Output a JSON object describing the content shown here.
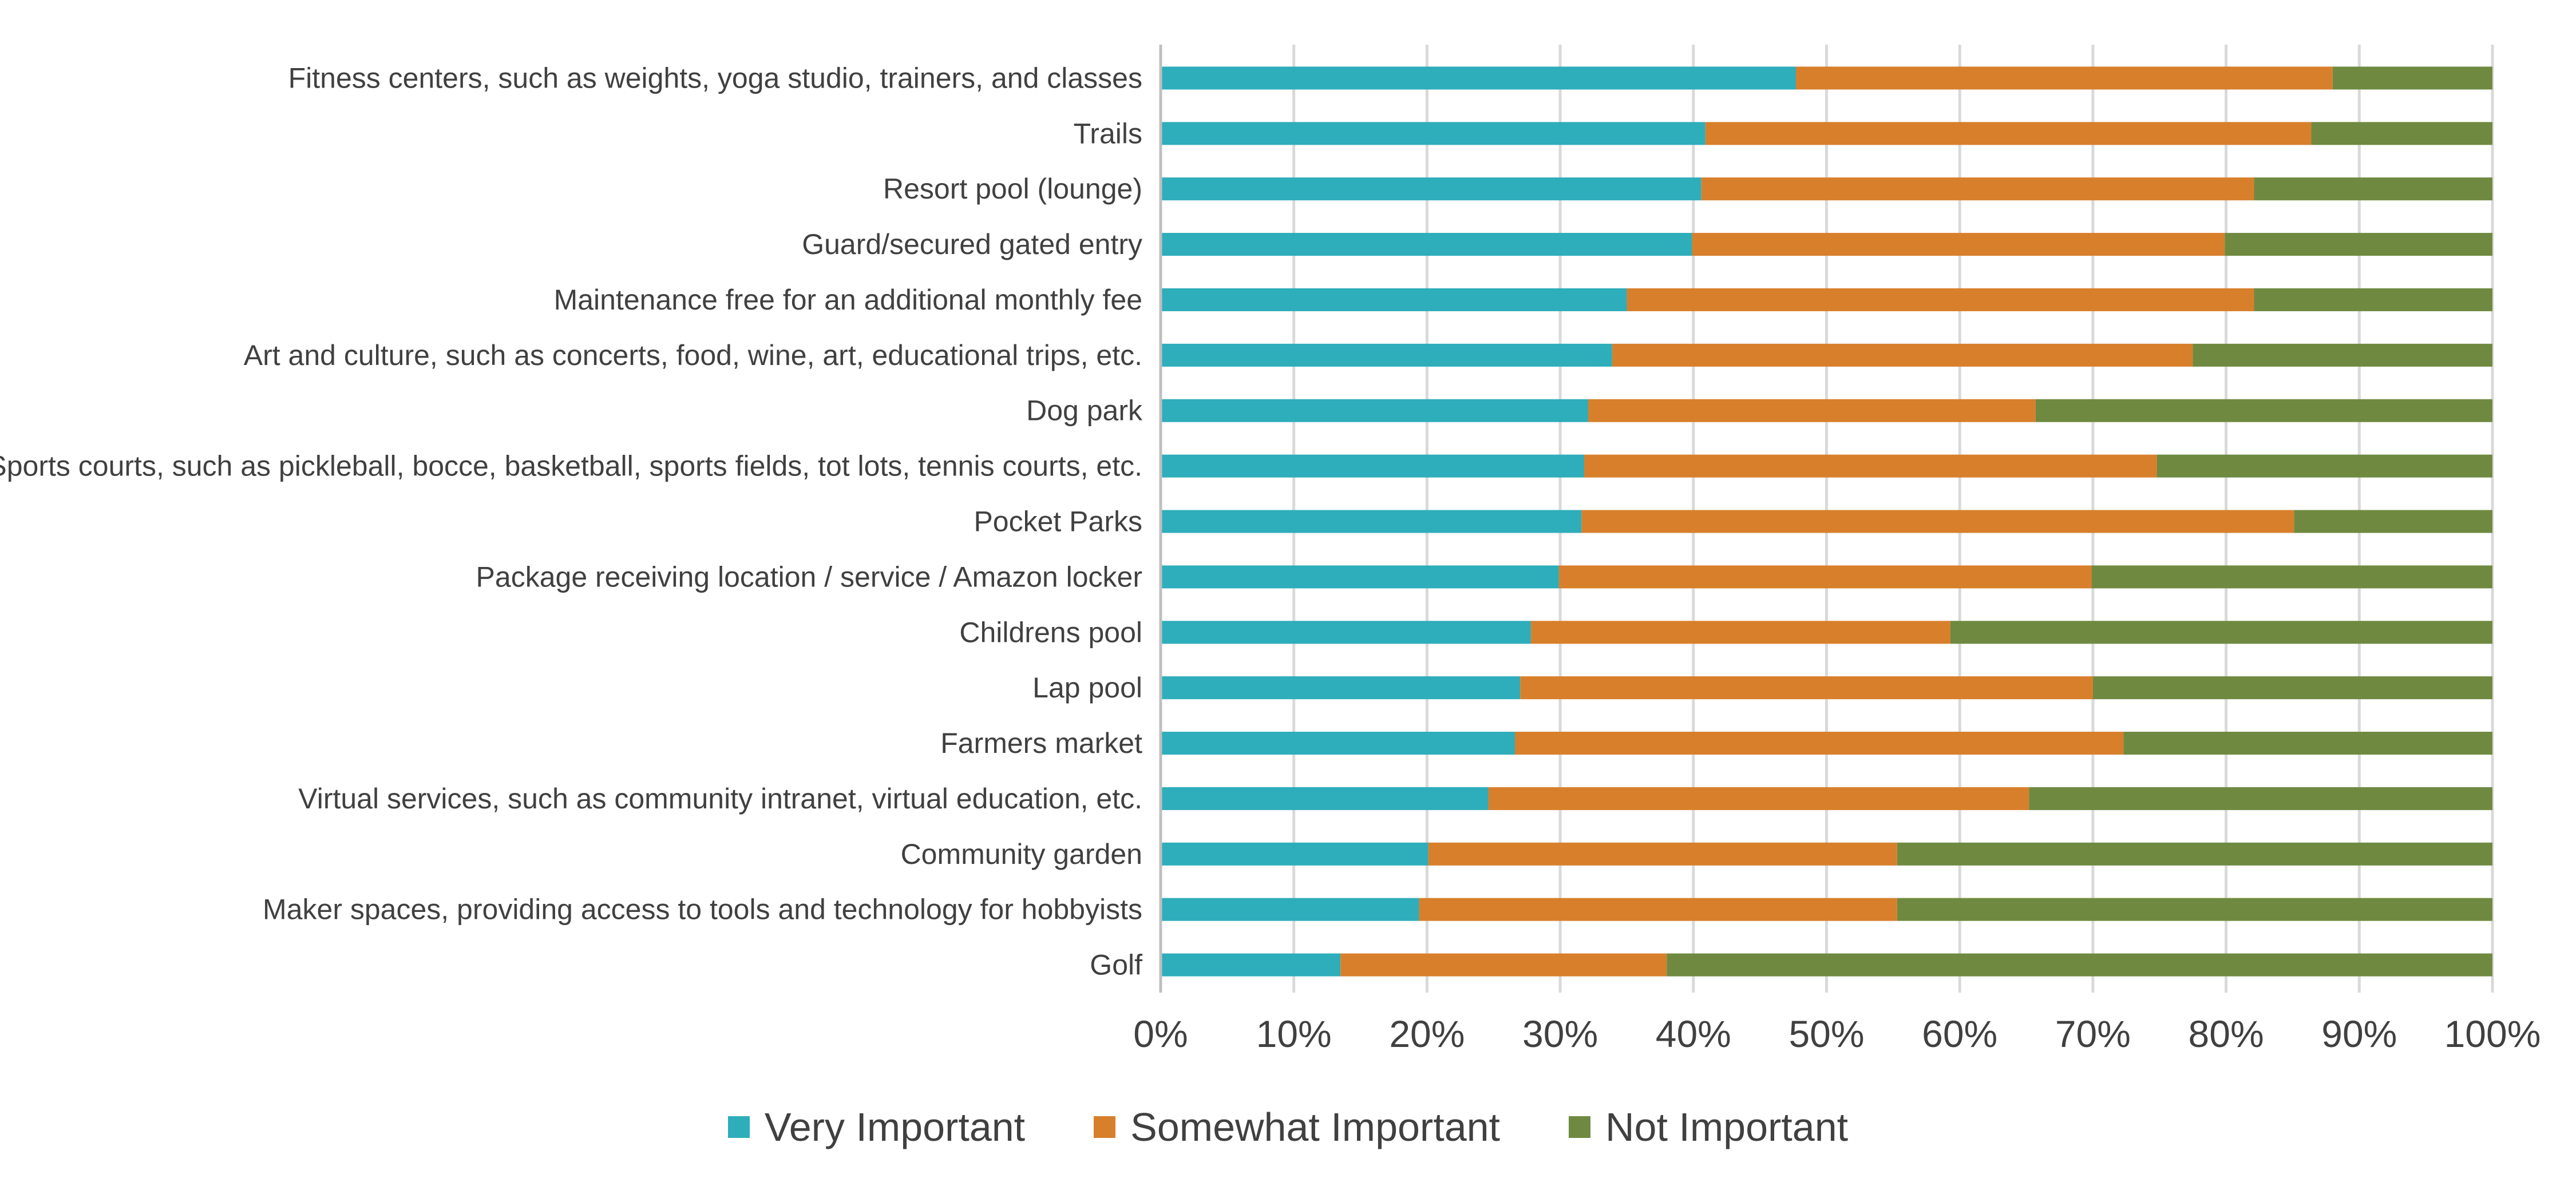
{
  "colors": {
    "very_important": "#2eadbb",
    "somewhat_important": "#d87f2c",
    "not_important": "#6f8a40",
    "gridline": "#d9d9d9",
    "text": "#404040"
  },
  "chart_data": {
    "type": "bar",
    "orientation": "horizontal",
    "stacked": "percent",
    "categories": [
      "Fitness centers, such as weights, yoga studio, trainers, and classes",
      "Trails",
      "Resort pool (lounge)",
      "Guard/secured gated entry",
      "Maintenance free for an additional monthly fee",
      "Art and culture, such as concerts, food, wine, art, educational trips, etc.",
      "Dog park",
      "Sports courts, such as pickleball, bocce, basketball, sports fields, tot lots, tennis courts, etc.",
      "Pocket Parks",
      "Package receiving location / service / Amazon locker",
      "Childrens pool",
      "Lap pool",
      "Farmers market",
      "Virtual services, such as community intranet, virtual education, etc.",
      "Community garden",
      "Maker spaces, providing access to tools and technology for hobbyists",
      "Golf"
    ],
    "series": [
      {
        "name": "Very Important",
        "color": "#2eadbb",
        "values": [
          47.7,
          40.9,
          40.6,
          39.9,
          35.0,
          33.9,
          32.1,
          31.8,
          31.6,
          29.9,
          27.8,
          27.0,
          26.6,
          24.6,
          20.1,
          19.4,
          13.5
        ]
      },
      {
        "name": "Somewhat Important",
        "color": "#d87f2c",
        "values": [
          40.3,
          45.5,
          41.5,
          40.0,
          47.1,
          43.6,
          33.6,
          43.0,
          53.5,
          40.0,
          31.5,
          43.0,
          45.7,
          40.6,
          35.2,
          35.9,
          24.5
        ]
      },
      {
        "name": "Not Important",
        "color": "#6f8a40",
        "values": [
          12.0,
          13.6,
          17.9,
          20.1,
          17.9,
          22.5,
          34.3,
          25.2,
          14.9,
          30.1,
          40.7,
          30.0,
          27.7,
          34.8,
          44.7,
          44.7,
          62.0
        ]
      }
    ],
    "x_ticks": [
      "0%",
      "10%",
      "20%",
      "30%",
      "40%",
      "50%",
      "60%",
      "70%",
      "80%",
      "90%",
      "100%"
    ],
    "xlim": [
      0,
      100
    ],
    "grid": "vertical",
    "legend_position": "bottom"
  }
}
